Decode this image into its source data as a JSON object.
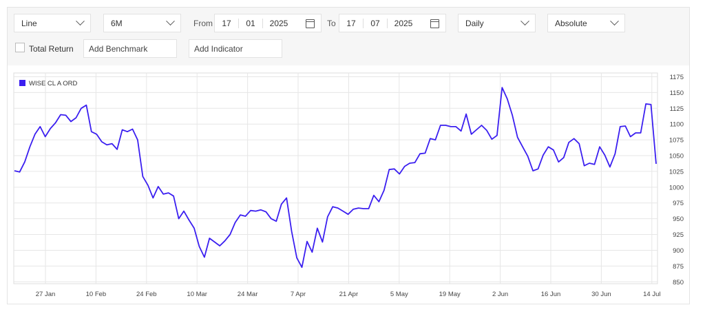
{
  "toolbar": {
    "chart_type": "Line",
    "range": "6M",
    "from_label": "From",
    "from_day": "17",
    "from_month": "01",
    "from_year": "2025",
    "to_label": "To",
    "to_day": "17",
    "to_month": "07",
    "to_year": "2025",
    "interval": "Daily",
    "scale": "Absolute",
    "total_return_label": "Total Return",
    "benchmark_placeholder": "Add Benchmark",
    "indicator_placeholder": "Add Indicator"
  },
  "chart_data": {
    "type": "line",
    "x_tick_labels": [
      "27 Jan",
      "10 Feb",
      "24 Feb",
      "10 Mar",
      "24 Mar",
      "7 Apr",
      "21 Apr",
      "5 May",
      "19 May",
      "2 Jun",
      "16 Jun",
      "30 Jun",
      "14 Jul"
    ],
    "y_ticks": [
      850,
      875,
      900,
      925,
      950,
      975,
      1000,
      1025,
      1050,
      1075,
      1100,
      1125,
      1150,
      1175
    ],
    "ylim": [
      847,
      1181
    ],
    "grid": true,
    "legend_position": "top-left",
    "series": [
      {
        "name": "WISE CL A ORD",
        "color": "#3a1ef0",
        "values": [
          1026,
          1024,
          1040,
          1064,
          1084,
          1096,
          1080,
          1093,
          1102,
          1115,
          1114,
          1104,
          1110,
          1125,
          1130,
          1088,
          1084,
          1072,
          1067,
          1069,
          1060,
          1091,
          1088,
          1092,
          1075,
          1017,
          1003,
          983,
          1001,
          989,
          991,
          986,
          950,
          962,
          948,
          935,
          906,
          889,
          919,
          913,
          907,
          915,
          925,
          944,
          956,
          954,
          963,
          962,
          964,
          961,
          950,
          946,
          973,
          983,
          930,
          888,
          873,
          914,
          897,
          935,
          913,
          953,
          969,
          967,
          962,
          957,
          965,
          967,
          966,
          966,
          987,
          977,
          995,
          1028,
          1029,
          1021,
          1033,
          1038,
          1039,
          1053,
          1054,
          1077,
          1075,
          1098,
          1098,
          1096,
          1096,
          1089,
          1116,
          1084,
          1091,
          1098,
          1090,
          1076,
          1082,
          1158,
          1140,
          1114,
          1079,
          1064,
          1049,
          1026,
          1029,
          1051,
          1064,
          1059,
          1040,
          1047,
          1071,
          1077,
          1069,
          1034,
          1038,
          1036,
          1064,
          1051,
          1032,
          1053,
          1096,
          1097,
          1080,
          1086,
          1086,
          1132,
          1131,
          1037
        ]
      }
    ]
  }
}
